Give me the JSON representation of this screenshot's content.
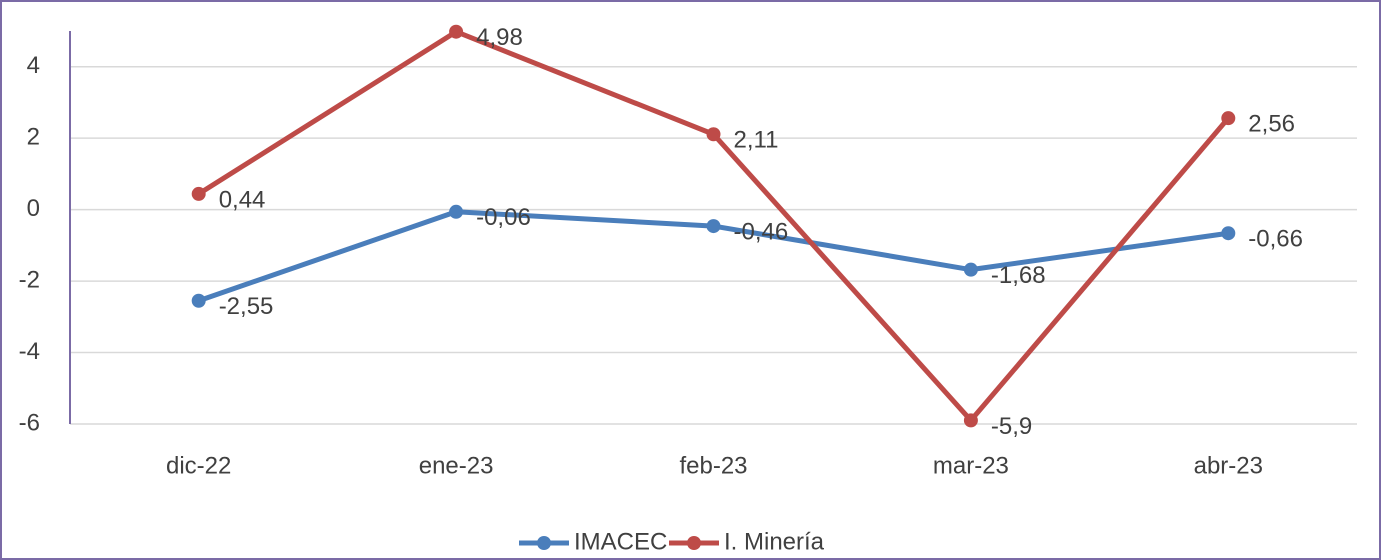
{
  "chart_data": {
    "type": "line",
    "categories": [
      "dic-22",
      "ene-23",
      "feb-23",
      "mar-23",
      "abr-23"
    ],
    "series": [
      {
        "name": "IMACEC",
        "color": "#4a7ebb",
        "values": [
          -2.55,
          -0.06,
          -0.46,
          -1.68,
          -0.66
        ],
        "value_labels": [
          "-2,55",
          "-0,06",
          "-0,46",
          "-1,68",
          "-0,66"
        ]
      },
      {
        "name": "I. Minería",
        "color": "#be4b48",
        "values": [
          0.44,
          4.98,
          2.11,
          -5.9,
          2.56
        ],
        "value_labels": [
          "0,44",
          "4,98",
          "2,11",
          "-5,9",
          "2,56"
        ]
      }
    ],
    "ylim": [
      -6,
      5
    ],
    "yticks": [
      -6,
      -4,
      -2,
      0,
      2,
      4
    ],
    "grid": true,
    "legend": "bottom"
  }
}
